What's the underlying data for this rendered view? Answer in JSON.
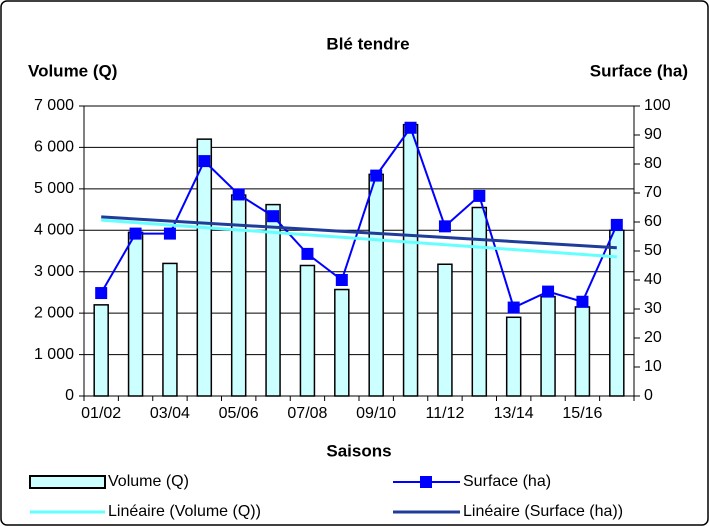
{
  "chart_data": {
    "type": "bar-line",
    "title": "Blé tendre",
    "y_label": "Volume (Q)",
    "y2_label": "Surface (ha)",
    "x_label": "Saisons",
    "categories": [
      "01/02",
      null,
      "03/04",
      null,
      "05/06",
      null,
      "07/08",
      null,
      "09/10",
      null,
      "11/12",
      null,
      "13/14",
      null,
      "15/16",
      null
    ],
    "series": [
      {
        "name": "Volume (Q)",
        "type": "bar",
        "color": "#ccffff",
        "values": [
          2200,
          3950,
          3200,
          6200,
          4850,
          4620,
          3150,
          2570,
          5350,
          6550,
          3180,
          4550,
          1900,
          2400,
          2150,
          4000
        ]
      },
      {
        "name": "Surface (ha)",
        "type": "line",
        "axis": "y2",
        "color": "#0000ff",
        "values": [
          35.5,
          56,
          56,
          81,
          69.5,
          62,
          49,
          40,
          76,
          92.5,
          58.5,
          69,
          30.5,
          36,
          32.5,
          59
        ]
      }
    ],
    "trendlines": [
      {
        "name": "Linéaire (Volume (Q))",
        "color": "#66ffff",
        "series": 0
      },
      {
        "name": "Linéaire (Surface (ha))",
        "color": "#1f3c99",
        "series": 1
      }
    ],
    "ylim": [
      0,
      7000
    ],
    "yticks": [
      0,
      {
        "value": 1000,
        "label": "1 000"
      },
      {
        "value": 2000,
        "label": "2 000"
      },
      {
        "value": 3000,
        "label": "3 000"
      },
      {
        "value": 4000,
        "label": "4 000"
      },
      {
        "value": 5000,
        "label": "5 000"
      },
      {
        "value": 6000,
        "label": "6 000"
      },
      {
        "value": 7000,
        "label": "7 000"
      }
    ],
    "y2lim": [
      0,
      100
    ],
    "y2ticks": [
      0,
      10,
      20,
      30,
      40,
      50,
      60,
      70,
      80,
      90,
      100
    ],
    "grid": true
  }
}
